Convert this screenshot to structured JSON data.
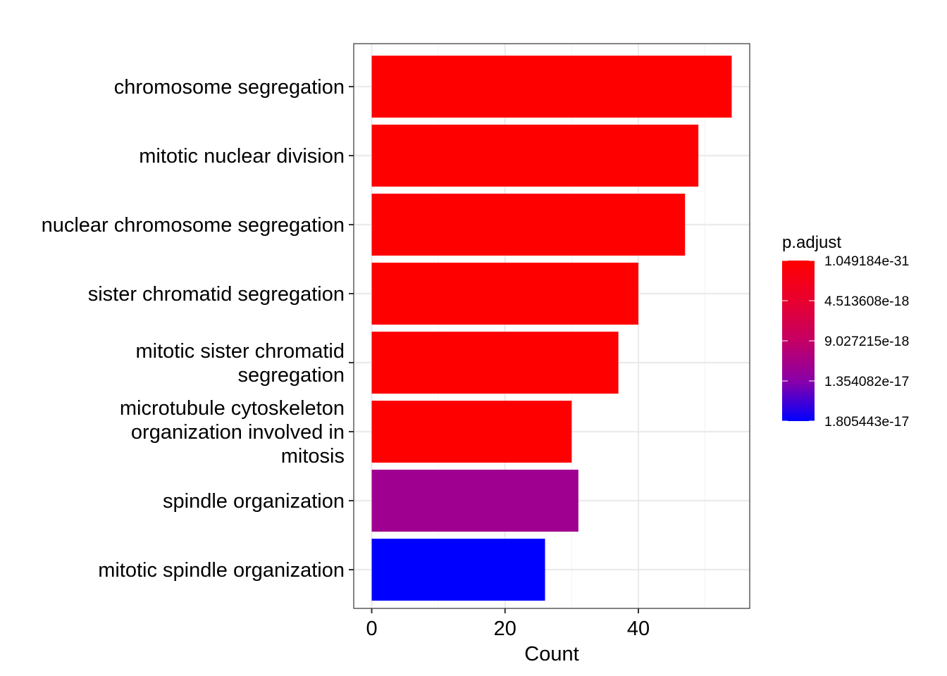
{
  "chart_data": {
    "type": "bar",
    "orientation": "horizontal",
    "categories": [
      "chromosome segregation",
      "mitotic nuclear division",
      "nuclear chromosome segregation",
      "sister chromatid segregation",
      "mitotic sister chromatid segregation",
      "microtubule cytoskeleton organization involved in mitosis",
      "spindle organization",
      "mitotic spindle organization"
    ],
    "category_lines": [
      [
        "chromosome segregation"
      ],
      [
        "mitotic nuclear division"
      ],
      [
        "nuclear chromosome segregation"
      ],
      [
        "sister chromatid segregation"
      ],
      [
        "mitotic sister chromatid",
        "segregation"
      ],
      [
        "microtubule cytoskeleton",
        "organization involved in",
        "mitosis"
      ],
      [
        "spindle organization"
      ],
      [
        "mitotic spindle organization"
      ]
    ],
    "values": [
      54,
      49,
      47,
      40,
      37,
      30,
      31,
      26
    ],
    "p_adjust_colors": [
      "#FF0000",
      "#FF0000",
      "#FF0000",
      "#FF0000",
      "#FF0000",
      "#FF0000",
      "#A0008F",
      "#0000FF"
    ],
    "xlabel": "Count",
    "ylabel": "",
    "xlim": [
      -2.7,
      56.7
    ],
    "xticks": [
      0,
      20,
      40
    ],
    "grid": true,
    "legend": {
      "title": "p.adjust",
      "placement": "right",
      "labels": [
        "1.049184e-31",
        "4.513608e-18",
        "9.027215e-18",
        "1.354082e-17",
        "1.805443e-17"
      ],
      "gradient_colors": [
        "#FF0000",
        "#0000FF"
      ]
    }
  }
}
